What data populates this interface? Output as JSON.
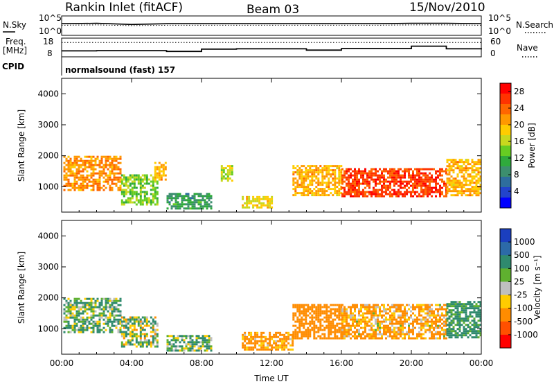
{
  "header": {
    "station": "Rankin Inlet (fitACF)",
    "beam": "Beam 03",
    "date": "15/Nov/2010"
  },
  "strip_noise": {
    "left_label": "N.Sky",
    "right_label": "N.Search",
    "left_ticks": [
      "10^5",
      "10^0"
    ],
    "right_ticks": [
      "10^5",
      "10^0"
    ]
  },
  "strip_freq": {
    "left_label_1": "Freq.",
    "left_label_2": "[MHz]",
    "right_label": "Nave",
    "left_ticks": [
      "18",
      "8"
    ],
    "right_ticks": [
      "60",
      "0"
    ]
  },
  "strip_cpid": {
    "label": "CPID",
    "text": "normalsound (fast) 157"
  },
  "colorbars": {
    "power": {
      "label": "Power [dB]",
      "ticks": [
        "4",
        "8",
        "12",
        "16",
        "20",
        "24",
        "28"
      ],
      "colors": [
        "#0000ff",
        "#2244cc",
        "#2e6e9e",
        "#3c8f6e",
        "#2faa3c",
        "#66cc22",
        "#c8d81e",
        "#ffcc00",
        "#ff9900",
        "#ff6600",
        "#ff3300",
        "#ff0000"
      ]
    },
    "velocity": {
      "label": "Velocity [m s⁻¹]",
      "ticks": [
        "1000",
        "500",
        "100",
        "25",
        "-25",
        "-100",
        "-500",
        "-1000"
      ],
      "colors": [
        "#1b3fbf",
        "#2c6aa8",
        "#2f8a6e",
        "#5fb02f",
        "#bfbfbf",
        "#ffcc00",
        "#ff8c00",
        "#ff5000",
        "#ff0000"
      ]
    }
  },
  "chart_data": [
    {
      "type": "line",
      "title": "N.Sky / N.Search",
      "x": [
        "00:00",
        "02:00",
        "04:00",
        "06:00",
        "08:00",
        "10:00",
        "12:00",
        "14:00",
        "16:00",
        "18:00",
        "20:00",
        "22:00",
        "24:00"
      ],
      "series": [
        {
          "name": "N.Sky",
          "values": [
            3.0,
            3.1,
            2.8,
            3.0,
            3.0,
            3.0,
            3.0,
            3.0,
            3.0,
            3.0,
            3.1,
            3.1,
            3.0
          ]
        },
        {
          "name": "N.Search",
          "values": [
            2.6,
            2.7,
            2.5,
            2.6,
            2.6,
            2.6,
            2.6,
            2.6,
            2.6,
            2.6,
            2.7,
            2.7,
            2.6
          ]
        }
      ],
      "ylim": [
        0,
        5
      ]
    },
    {
      "type": "line",
      "title": "Freq / Nave",
      "x": [
        "00:00",
        "02:00",
        "04:00",
        "06:00",
        "08:00",
        "10:00",
        "12:00",
        "14:00",
        "16:00",
        "18:00",
        "20:00",
        "22:00",
        "24:00"
      ],
      "series": [
        {
          "name": "Freq.",
          "values": [
            11.2,
            11.3,
            11.3,
            10.9,
            12.1,
            12.3,
            12.3,
            11.6,
            12.4,
            12.4,
            13.7,
            12.3,
            12.0
          ]
        },
        {
          "name": "Nave",
          "values": [
            46,
            46,
            46,
            46,
            46,
            46,
            46,
            46,
            46,
            46,
            46,
            46,
            46
          ]
        }
      ],
      "ylim": [
        8,
        18
      ]
    },
    {
      "type": "heatmap",
      "title": "Power",
      "xlabel": "",
      "ylabel": "Slant Range [km]",
      "x_ticks": [
        "00:00",
        "04:00",
        "08:00",
        "12:00",
        "16:00",
        "20:00",
        "00:00"
      ],
      "y_ticks": [
        "1000",
        "2000",
        "3000",
        "4000"
      ],
      "xlim": [
        0,
        24
      ],
      "ylim": [
        180,
        4500
      ],
      "regions": [
        {
          "t_start": 0.1,
          "t_end": 3.4,
          "range_lo": 900,
          "range_hi": 2000,
          "value": 22
        },
        {
          "t_start": 3.4,
          "t_end": 5.5,
          "range_lo": 400,
          "range_hi": 1400,
          "value": 14
        },
        {
          "t_start": 5.3,
          "t_end": 6.0,
          "range_lo": 1200,
          "range_hi": 1800,
          "value": 20
        },
        {
          "t_start": 6.0,
          "t_end": 8.5,
          "range_lo": 300,
          "range_hi": 800,
          "value": 10
        },
        {
          "t_start": 9.1,
          "t_end": 9.7,
          "range_lo": 1200,
          "range_hi": 1700,
          "value": 16
        },
        {
          "t_start": 10.3,
          "t_end": 12.0,
          "range_lo": 300,
          "range_hi": 700,
          "value": 18
        },
        {
          "t_start": 13.2,
          "t_end": 16.0,
          "range_lo": 700,
          "range_hi": 1700,
          "value": 20
        },
        {
          "t_start": 16.0,
          "t_end": 22.0,
          "range_lo": 700,
          "range_hi": 1600,
          "value": 26
        },
        {
          "t_start": 22.0,
          "t_end": 24.0,
          "range_lo": 700,
          "range_hi": 1900,
          "value": 20
        }
      ],
      "zlim": [
        0,
        30
      ]
    },
    {
      "type": "heatmap",
      "title": "Velocity",
      "xlabel": "Time UT",
      "ylabel": "Slant Range [km]",
      "x_ticks": [
        "00:00",
        "04:00",
        "08:00",
        "12:00",
        "16:00",
        "20:00",
        "00:00"
      ],
      "y_ticks": [
        "1000",
        "2000",
        "3000",
        "4000"
      ],
      "xlim": [
        0,
        24
      ],
      "ylim": [
        180,
        4500
      ],
      "regions": [
        {
          "t_start": 0.1,
          "t_end": 3.4,
          "range_lo": 900,
          "range_hi": 2000,
          "value": 100
        },
        {
          "t_start": 3.4,
          "t_end": 5.5,
          "range_lo": 400,
          "range_hi": 1400,
          "value": 50
        },
        {
          "t_start": 6.0,
          "t_end": 8.5,
          "range_lo": 300,
          "range_hi": 800,
          "value": 100
        },
        {
          "t_start": 10.3,
          "t_end": 13.2,
          "range_lo": 300,
          "range_hi": 900,
          "value": -200
        },
        {
          "t_start": 13.2,
          "t_end": 16.0,
          "range_lo": 700,
          "range_hi": 1800,
          "value": -300
        },
        {
          "t_start": 16.0,
          "t_end": 22.0,
          "range_lo": 700,
          "range_hi": 1800,
          "value": -150
        },
        {
          "t_start": 22.0,
          "t_end": 24.0,
          "range_lo": 700,
          "range_hi": 1900,
          "value": 200
        }
      ],
      "zlim": [
        -1000,
        1000
      ]
    }
  ]
}
